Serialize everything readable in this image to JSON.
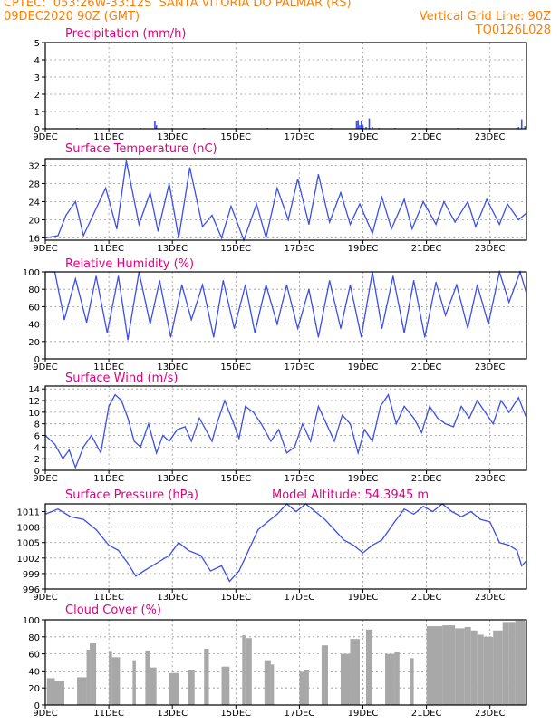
{
  "header": {
    "line1": "CPTEC:  053:26W-33:12S  SANTA VITORIA DO PALMAR (RS)",
    "line2": "09DEC2020 90Z (GMT)",
    "grid_note": "Vertical Grid Line: 90Z",
    "code": "TQ0126L028"
  },
  "colors": {
    "header": "#ff7f00",
    "title": "#e0007f",
    "line": "#3b4fe8",
    "bars": "#a8a8a8",
    "grid": "#999999"
  },
  "x_ticks": [
    "9DEC",
    "11DEC",
    "13DEC",
    "15DEC",
    "17DEC",
    "19DEC",
    "21DEC",
    "23DEC"
  ],
  "x_range_days": [
    9,
    24.15
  ],
  "chart_data": [
    {
      "type": "bar",
      "title": "Precipitation (mm/h)",
      "ylim": [
        0,
        5
      ],
      "yticks": [
        "0",
        "1",
        "2",
        "3",
        "4",
        "5"
      ],
      "x": [
        9.0,
        10.0,
        11.0,
        12.0,
        12.45,
        12.5,
        13.0,
        14.0,
        15.0,
        16.0,
        17.0,
        18.0,
        18.8,
        18.85,
        18.9,
        18.95,
        19.0,
        19.1,
        19.2,
        19.3,
        19.5,
        20.0,
        21.0,
        22.0,
        23.0,
        23.85,
        23.9,
        24.0,
        24.1
      ],
      "values": [
        0.05,
        0.05,
        0.05,
        0.05,
        0.45,
        0.2,
        0.05,
        0.05,
        0.05,
        0.05,
        0.05,
        0.05,
        0.45,
        0.5,
        0.2,
        0.45,
        0.2,
        0.1,
        0.6,
        0.1,
        0.05,
        0.05,
        0.05,
        0.05,
        0.05,
        0.05,
        0.1,
        0.55,
        0.15
      ]
    },
    {
      "type": "line",
      "title": "Surface Temperature (nC)",
      "ylim": [
        15.5,
        33.5
      ],
      "yticks": [
        "16",
        "20",
        "24",
        "28",
        "32"
      ],
      "x": [
        9.0,
        9.4,
        9.65,
        9.95,
        10.2,
        10.6,
        10.9,
        11.25,
        11.55,
        11.95,
        12.3,
        12.55,
        12.9,
        13.2,
        13.55,
        13.95,
        14.25,
        14.55,
        14.85,
        15.25,
        15.65,
        15.95,
        16.3,
        16.65,
        16.95,
        17.3,
        17.6,
        17.95,
        18.3,
        18.6,
        18.9,
        19.3,
        19.6,
        19.9,
        20.3,
        20.55,
        20.9,
        21.3,
        21.55,
        21.9,
        22.3,
        22.55,
        22.9,
        23.3,
        23.55,
        23.9,
        24.15
      ],
      "values": [
        16,
        16.5,
        21,
        24,
        16.5,
        22.5,
        27,
        18,
        33,
        19,
        26,
        17.5,
        28,
        16,
        31.5,
        18.5,
        21,
        16,
        23,
        15.5,
        23.5,
        16,
        27,
        20,
        29,
        19,
        30,
        19.5,
        26,
        19,
        23.5,
        17,
        25,
        18,
        24.5,
        18,
        24,
        19,
        24,
        19.5,
        24,
        18.5,
        24.5,
        19,
        23.5,
        20,
        21.5
      ]
    },
    {
      "type": "line",
      "title": "Relative Humidity (%)",
      "ylim": [
        0,
        100
      ],
      "yticks": [
        "0",
        "20",
        "40",
        "60",
        "80",
        "100"
      ],
      "x": [
        9.0,
        9.3,
        9.6,
        9.95,
        10.3,
        10.6,
        10.95,
        11.3,
        11.6,
        11.95,
        12.3,
        12.6,
        12.95,
        13.3,
        13.6,
        13.95,
        14.3,
        14.6,
        14.95,
        15.3,
        15.6,
        15.95,
        16.3,
        16.6,
        16.95,
        17.3,
        17.6,
        17.95,
        18.3,
        18.6,
        18.95,
        19.3,
        19.6,
        19.95,
        20.3,
        20.6,
        20.95,
        21.3,
        21.6,
        21.95,
        22.3,
        22.6,
        22.95,
        23.3,
        23.6,
        23.95,
        24.15
      ],
      "values": [
        100,
        100,
        45,
        92,
        42,
        95,
        30,
        95,
        22,
        100,
        40,
        90,
        25,
        85,
        45,
        85,
        25,
        90,
        35,
        85,
        30,
        85,
        40,
        85,
        35,
        80,
        25,
        90,
        35,
        85,
        25,
        100,
        35,
        95,
        30,
        90,
        25,
        88,
        50,
        85,
        35,
        85,
        40,
        100,
        65,
        100,
        75
      ]
    },
    {
      "type": "line",
      "title": "Surface Wind (m/s)",
      "ylim": [
        0,
        14.5
      ],
      "yticks": [
        "0",
        "2",
        "4",
        "6",
        "8",
        "10",
        "12",
        "14"
      ],
      "x": [
        9.0,
        9.3,
        9.55,
        9.75,
        9.95,
        10.2,
        10.45,
        10.75,
        11.0,
        11.2,
        11.4,
        11.6,
        11.8,
        12.0,
        12.25,
        12.5,
        12.7,
        12.9,
        13.15,
        13.4,
        13.6,
        13.85,
        14.05,
        14.25,
        14.4,
        14.65,
        14.9,
        15.1,
        15.3,
        15.55,
        15.8,
        16.1,
        16.35,
        16.6,
        16.85,
        17.1,
        17.35,
        17.6,
        17.85,
        18.1,
        18.35,
        18.6,
        18.85,
        19.05,
        19.3,
        19.55,
        19.8,
        20.05,
        20.3,
        20.6,
        20.85,
        21.1,
        21.35,
        21.6,
        21.85,
        22.1,
        22.35,
        22.6,
        22.85,
        23.1,
        23.35,
        23.6,
        23.9,
        24.15
      ],
      "values": [
        6,
        4.5,
        2,
        3.5,
        0.5,
        4,
        6,
        3,
        11,
        13,
        12,
        9,
        5,
        4,
        8,
        3,
        6,
        5,
        7,
        7.5,
        5,
        9,
        7,
        5,
        8,
        12,
        8.5,
        5.5,
        11,
        10,
        8,
        5,
        7,
        3,
        4,
        8,
        5,
        11,
        8,
        5,
        9.5,
        8,
        3,
        7,
        5,
        11,
        13,
        8,
        11,
        9,
        6.5,
        11,
        9,
        8,
        7.5,
        11,
        9,
        12,
        10,
        8,
        12,
        10,
        12.5,
        9
      ]
    },
    {
      "type": "line",
      "title": "Surface Pressure (hPa)",
      "subtitle": "Model Altitude: 54.3945 m",
      "ylim": [
        996,
        1012.5
      ],
      "yticks": [
        "996",
        "999",
        "1002",
        "1005",
        "1008",
        "1011"
      ],
      "x": [
        9.0,
        9.4,
        9.8,
        10.2,
        10.6,
        11.0,
        11.3,
        11.6,
        11.85,
        12.1,
        12.5,
        12.9,
        13.2,
        13.5,
        13.9,
        14.2,
        14.55,
        14.8,
        15.1,
        15.4,
        15.7,
        16.0,
        16.3,
        16.6,
        16.9,
        17.2,
        17.5,
        17.8,
        18.1,
        18.4,
        18.7,
        19.0,
        19.3,
        19.6,
        20.0,
        20.3,
        20.6,
        20.9,
        21.2,
        21.5,
        21.8,
        22.1,
        22.4,
        22.7,
        23.0,
        23.3,
        23.6,
        23.85,
        24.0,
        24.15
      ],
      "values": [
        1010.5,
        1011.5,
        1010,
        1009.5,
        1007.5,
        1004.5,
        1003.5,
        1001,
        998.5,
        999.5,
        1001,
        1002.5,
        1005,
        1003.5,
        1002.5,
        999.5,
        1000.5,
        997.5,
        999.5,
        1003.5,
        1007.5,
        1009,
        1010.5,
        1012.5,
        1011,
        1012.5,
        1011,
        1009.5,
        1007.5,
        1005.5,
        1004.5,
        1003,
        1004.5,
        1005.5,
        1009,
        1011.5,
        1010.5,
        1012,
        1011,
        1012.5,
        1011,
        1010,
        1011,
        1009.5,
        1009,
        1005,
        1004.5,
        1003.5,
        1000.5,
        1001.5
      ]
    },
    {
      "type": "area",
      "title": "Cloud Cover (%)",
      "ylim": [
        0,
        100
      ],
      "yticks": [
        "0",
        "20",
        "40",
        "60",
        "80",
        "100"
      ],
      "x": [
        9.0,
        9.05,
        9.3,
        9.6,
        9.9,
        10.0,
        10.3,
        10.4,
        10.6,
        10.7,
        11.0,
        11.1,
        11.35,
        11.5,
        11.75,
        11.85,
        12.0,
        12.15,
        12.3,
        12.5,
        12.8,
        12.9,
        13.2,
        13.3,
        13.5,
        13.7,
        13.8,
        14.0,
        14.15,
        14.4,
        14.55,
        14.65,
        14.8,
        15.0,
        15.2,
        15.3,
        15.5,
        15.7,
        15.9,
        16.1,
        16.2,
        16.5,
        16.6,
        16.85,
        17.0,
        17.15,
        17.3,
        17.5,
        17.7,
        17.9,
        18.0,
        18.3,
        18.6,
        18.9,
        19.0,
        19.1,
        19.3,
        19.4,
        19.7,
        20.0,
        20.15,
        20.3,
        20.5,
        20.6,
        20.8,
        21.0,
        21.5,
        21.9,
        22.2,
        22.4,
        22.6,
        22.8,
        23.1,
        23.4,
        23.6,
        23.8,
        24.1,
        24.15
      ],
      "values": [
        0,
        25,
        38,
        18,
        0,
        15,
        50,
        80,
        65,
        0,
        55,
        72,
        40,
        0,
        60,
        45,
        0,
        50,
        78,
        10,
        0,
        40,
        35,
        0,
        45,
        38,
        0,
        60,
        72,
        0,
        35,
        55,
        35,
        0,
        72,
        92,
        65,
        0,
        45,
        60,
        35,
        0,
        0,
        0,
        35,
        45,
        38,
        0,
        62,
        78,
        0,
        35,
        85,
        70,
        0,
        82,
        95,
        0,
        45,
        75,
        50,
        0,
        45,
        65,
        0,
        90,
        95,
        92,
        88,
        95,
        80,
        85,
        75,
        100,
        95,
        100,
        98,
        98
      ]
    }
  ]
}
